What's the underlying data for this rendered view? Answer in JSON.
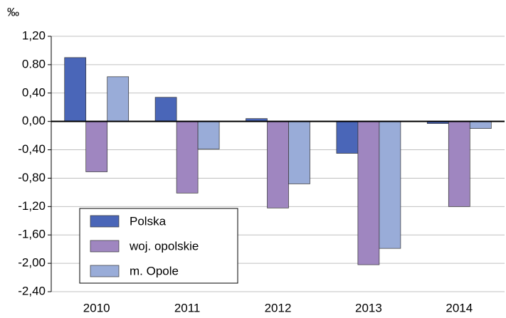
{
  "chart_data": {
    "type": "bar",
    "y_unit_label": "‰",
    "categories": [
      "2010",
      "2011",
      "2012",
      "2013",
      "2014"
    ],
    "series": [
      {
        "name": "Polska",
        "color": "#4a66b8",
        "values": [
          0.9,
          0.34,
          0.04,
          -0.45,
          -0.03
        ]
      },
      {
        "name": "woj. opolskie",
        "color": "#9f86c0",
        "values": [
          -0.71,
          -1.01,
          -1.22,
          -2.02,
          -1.2
        ]
      },
      {
        "name": "m. Opole",
        "color": "#99acd8",
        "values": [
          0.63,
          -0.39,
          -0.88,
          -1.79,
          -0.1
        ]
      }
    ],
    "ylim": [
      -2.4,
      1.2
    ],
    "yticks": [
      {
        "value": -2.4,
        "label": "-2,40"
      },
      {
        "value": -2.0,
        "label": "-2,00"
      },
      {
        "value": -1.6,
        "label": "-1,60"
      },
      {
        "value": -1.2,
        "label": "-1,20"
      },
      {
        "value": -0.8,
        "label": "-0,80"
      },
      {
        "value": -0.4,
        "label": "-0,40"
      },
      {
        "value": 0,
        "label": "0,00"
      },
      {
        "value": 0.4,
        "label": "0,40"
      },
      {
        "value": 0.8,
        "label": "0.80"
      },
      {
        "value": 1.2,
        "label": "1,20"
      }
    ],
    "grid": true,
    "legend": "lower left"
  }
}
